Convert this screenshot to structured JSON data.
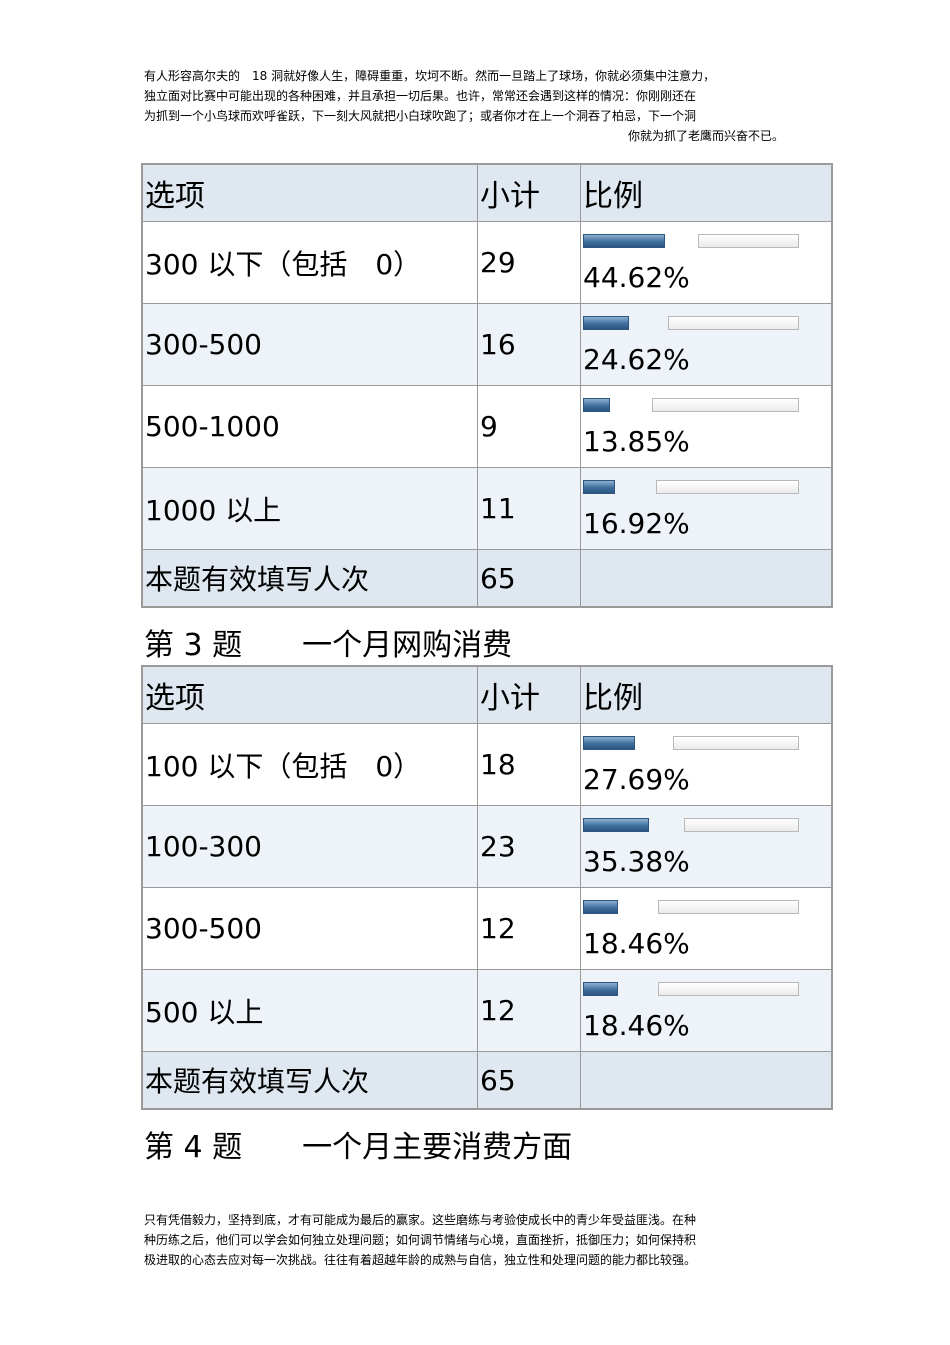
{
  "intro": [
    "有人形容高尔夫的　18 洞就好像人生，障碍重重，坎坷不断。然而一旦踏上了球场，你就必须集中注意力，",
    "独立面对比赛中可能出现的各种困难，并且承担一切后果。也许，常常还会遇到这样的情况：你刚刚还在",
    "为抓到一个小鸟球而欢呼雀跃，下一刻大风就把小白球吹跑了；或者你才在上一个洞吞了柏忌，下一个洞",
    "你就为抓了老鹰而兴奋不已。"
  ],
  "table1": {
    "headers": [
      "选项",
      "小计",
      "比例"
    ],
    "rows": [
      {
        "option": "300  以下（包括　0）",
        "count": "29",
        "pct": "44.62%",
        "fraction": 0.4462
      },
      {
        "option": "300-500",
        "count": "16",
        "pct": "24.62%",
        "fraction": 0.2462
      },
      {
        "option": "500-1000",
        "count": "9",
        "pct": "13.85%",
        "fraction": 0.1385
      },
      {
        "option": "1000  以上",
        "count": "11",
        "pct": "16.92%",
        "fraction": 0.1692
      }
    ],
    "total_label": "本题有效填写人次",
    "total": "65"
  },
  "question3": "第 3 题　　一个月网购消费",
  "table2": {
    "headers": [
      "选项",
      "小计",
      "比例"
    ],
    "rows": [
      {
        "option": "100  以下（包括　0）",
        "count": "18",
        "pct": "27.69%",
        "fraction": 0.2769
      },
      {
        "option": "100-300",
        "count": "23",
        "pct": "35.38%",
        "fraction": 0.3538
      },
      {
        "option": "300-500",
        "count": "12",
        "pct": "18.46%",
        "fraction": 0.1846
      },
      {
        "option": "500  以上",
        "count": "12",
        "pct": "18.46%",
        "fraction": 0.1846
      }
    ],
    "total_label": "本题有效填写人次",
    "total": "65"
  },
  "question4": "第 4 题　　一个月主要消费方面",
  "outro": [
    "只有凭借毅力，坚持到底，才有可能成为最后的赢家。这些磨练与考验使成长中的青少年受益匪浅。在种",
    "种历练之后，他们可以学会如何独立处理问题；如何调节情绪与心境，直面挫折，抵御压力；如何保持积",
    "极进取的心态去应对每一次挑战。往往有着超越年龄的成熟与自信，独立性和处理问题的能力都比较强。"
  ],
  "colors": {
    "header_bg": "#dfe8f0",
    "row_alt_bg": "#eef3f9",
    "bar_fill": "#3f6f9e",
    "border": "#9a9a9a"
  }
}
